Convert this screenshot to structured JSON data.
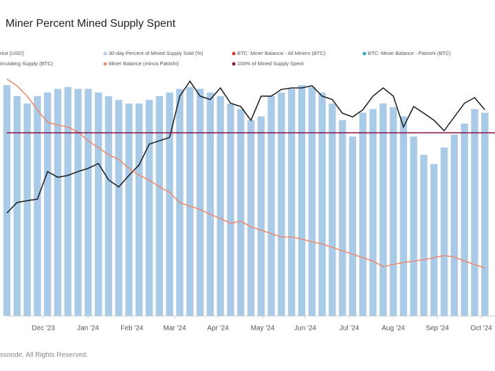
{
  "chart_data": {
    "type": "combo",
    "title": "Miner Percent Mined Supply Spent",
    "footer": "ssnode. All Rights Reserved.",
    "xlim": [
      0,
      48
    ],
    "xticks": [
      {
        "value": 3.58,
        "label": "Dec '23"
      },
      {
        "value": 7.98,
        "label": "Jan '24"
      },
      {
        "value": 12.3,
        "label": "Feb '24"
      },
      {
        "value": 16.5,
        "label": "Mar '24"
      },
      {
        "value": 20.76,
        "label": "Apr '24"
      },
      {
        "value": 25.15,
        "label": "May '24"
      },
      {
        "value": 29.34,
        "label": "Jun '24"
      },
      {
        "value": 33.67,
        "label": "Jul '24"
      },
      {
        "value": 38.0,
        "label": "Aug '24"
      },
      {
        "value": 42.33,
        "label": "Sep '24"
      },
      {
        "value": 46.65,
        "label": "Oct '24"
      }
    ],
    "ylim": [
      0,
      150
    ],
    "y2lim": [
      9300,
      83150
    ],
    "y3lim": [
      1775000,
      1835000
    ],
    "series": [
      {
        "name": "rice [USD]",
        "kind": "line",
        "axis": "y2",
        "color": "#222222",
        "values": [
          37000,
          39800,
          40300,
          40700,
          48100,
          46600,
          47100,
          48100,
          49000,
          50300,
          45900,
          44000,
          47100,
          49900,
          55500,
          56400,
          57300,
          68400,
          72400,
          68400,
          67500,
          70600,
          66500,
          65600,
          61900,
          68400,
          68400,
          70200,
          70600,
          70600,
          71200,
          68400,
          67500,
          63800,
          62800,
          64700,
          68400,
          70600,
          68400,
          60100,
          65600,
          63800,
          61900,
          59100,
          62800,
          66500,
          68000,
          64700
        ]
      },
      {
        "name": "30-day Percent of Mined Supply Sold (%)",
        "kind": "bar",
        "axis": "y",
        "color": "#a9cbe8",
        "values": [
          126,
          120,
          116,
          120,
          122,
          124,
          125,
          124,
          124,
          122,
          120,
          118,
          116,
          116,
          118,
          120,
          122,
          124,
          125,
          124,
          122,
          120,
          116,
          113,
          107,
          109,
          120,
          122,
          124,
          126,
          125,
          122,
          116,
          107,
          98,
          111,
          113,
          116,
          114,
          109,
          98,
          88,
          83,
          92,
          99,
          105,
          113,
          111
        ]
      },
      {
        "name": "BTC: Miner Balance - All Miners (BTC)",
        "kind": "legend",
        "color": "#d9342b"
      },
      {
        "name": "BTC: Miner Balance - Patoshi (BTC)",
        "kind": "legend",
        "color": "#2aa8c4"
      },
      {
        "name": "irculating Supply (BTC)",
        "kind": "legend",
        "color": null
      },
      {
        "name": "Miner Balance (minus Patoshi)",
        "kind": "line",
        "axis": "y3",
        "color": "#f08a70",
        "values": [
          1826750,
          1825250,
          1823000,
          1820000,
          1817300,
          1816700,
          1816250,
          1815200,
          1813250,
          1811750,
          1810250,
          1809200,
          1807250,
          1805750,
          1804700,
          1803200,
          1802000,
          1799750,
          1799000,
          1798250,
          1797200,
          1796300,
          1795250,
          1795700,
          1794500,
          1793750,
          1793000,
          1792250,
          1792250,
          1791800,
          1791200,
          1790750,
          1790000,
          1789250,
          1788500,
          1787750,
          1787000,
          1785800,
          1786250,
          1786700,
          1787000,
          1787300,
          1787750,
          1788200,
          1787900,
          1787000,
          1786250,
          1785500
        ]
      },
      {
        "name": "100% of Mined Supply Spent",
        "kind": "hline",
        "axis": "y",
        "color": "#8b1a4a",
        "value": 100
      }
    ]
  }
}
